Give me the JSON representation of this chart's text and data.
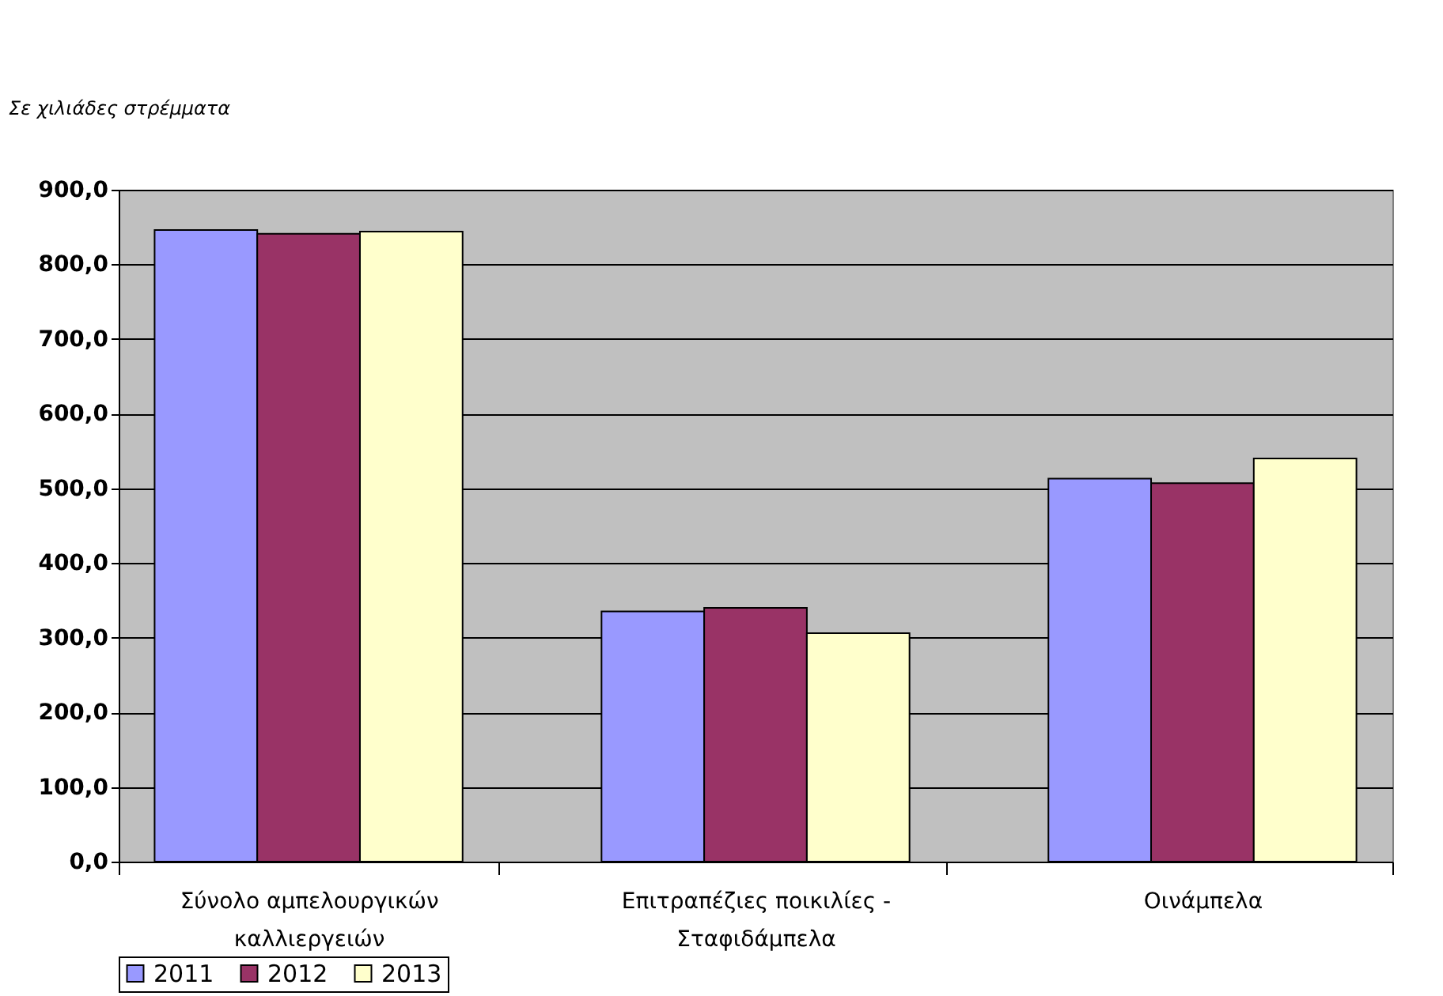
{
  "chart_data": {
    "type": "bar",
    "ylabel": "Σε  χιλιάδες στρέμματα",
    "categories": [
      "Σύνολο αμπελουργικών καλλιεργειών",
      "Επιτραπέζιες ποικιλίες - Σταφιδάμπελα",
      "Οινάμπελα"
    ],
    "series": [
      {
        "name": "2011",
        "color": "#9999ff",
        "values": [
          846,
          335,
          513
        ]
      },
      {
        "name": "2012",
        "color": "#993366",
        "values": [
          841,
          340,
          507
        ]
      },
      {
        "name": "2013",
        "color": "#ffffcc",
        "values": [
          844,
          306,
          540
        ]
      }
    ],
    "ylim": [
      0,
      900
    ],
    "yticks": [
      {
        "value": 0,
        "label": "0,0"
      },
      {
        "value": 100,
        "label": "100,0"
      },
      {
        "value": 200,
        "label": "200,0"
      },
      {
        "value": 300,
        "label": "300,0"
      },
      {
        "value": 400,
        "label": "400,0"
      },
      {
        "value": 500,
        "label": "500,0"
      },
      {
        "value": 600,
        "label": "600,0"
      },
      {
        "value": 700,
        "label": "700,0"
      },
      {
        "value": 800,
        "label": "800,0"
      },
      {
        "value": 900,
        "label": "900,0"
      }
    ],
    "grid": "y",
    "legend": "bottom"
  }
}
